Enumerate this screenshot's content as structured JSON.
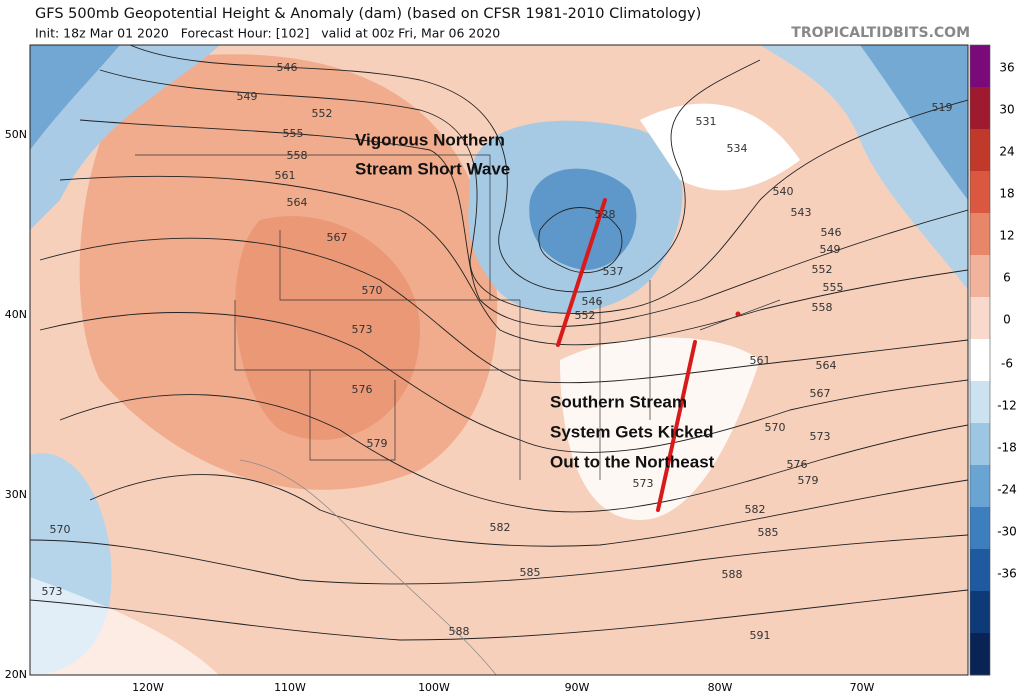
{
  "header": {
    "title": "GFS 500mb Geopotential Height & Anomaly (dam) (based on CFSR 1981-2010 Climatology)",
    "subtitle": "Init: 18z Mar 01 2020   Forecast Hour: [102]   valid at 00z Fri, Mar 06 2020",
    "credit": "TROPICALTIDBITS.COM"
  },
  "map": {
    "lat_labels": [
      "50N",
      "40N",
      "30N",
      "20N"
    ],
    "lon_labels": [
      "120W",
      "110W",
      "100W",
      "90W",
      "80W",
      "70W"
    ],
    "contour_labels": [
      546,
      549,
      552,
      555,
      558,
      561,
      564,
      567,
      570,
      573,
      576,
      579,
      582,
      585,
      588,
      591,
      570,
      573,
      531,
      534,
      540,
      543,
      546,
      549,
      552,
      555,
      558,
      561,
      564,
      567,
      570,
      573,
      576,
      579,
      582,
      585,
      588,
      519,
      528,
      537,
      546,
      552,
      573
    ],
    "annotations": [
      "Vigorous Northern",
      "Stream Short Wave",
      "Southern Stream",
      "System Gets Kicked",
      "Out to the Northeast"
    ]
  },
  "colorbar": {
    "ticks": [
      36,
      30,
      24,
      18,
      12,
      6,
      0,
      -6,
      -12,
      -18,
      -24,
      -30,
      -36
    ]
  }
}
